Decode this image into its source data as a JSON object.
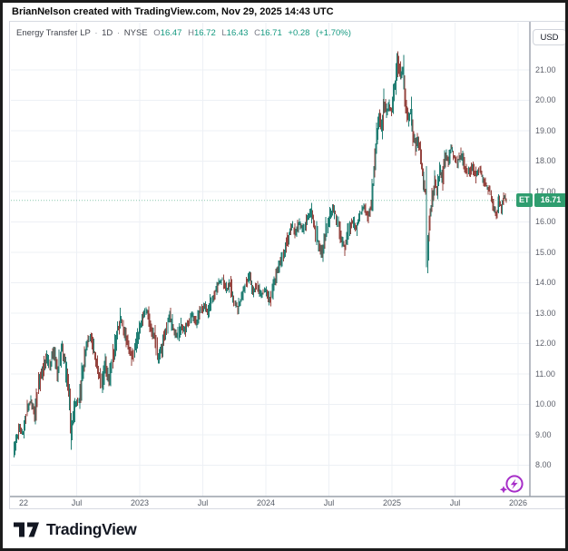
{
  "attribution": "BrianNelson created with TradingView.com, Nov 29, 2025 14:43 UTC",
  "header": {
    "symbol": "Energy Transfer LP",
    "separator": "·",
    "interval": "1D",
    "exchange": "NYSE",
    "ohlc": [
      {
        "k": "O",
        "v": "16.47"
      },
      {
        "k": "H",
        "v": "16.72"
      },
      {
        "k": "L",
        "v": "16.43"
      },
      {
        "k": "C",
        "v": "16.71"
      }
    ],
    "change": "+0.28",
    "change_pct": "(+1.70%)"
  },
  "price_axis": {
    "currency": "USD",
    "last_price_badge": {
      "symbol": "ET",
      "price": "16.71"
    }
  },
  "footer": {
    "brand": "TradingView"
  },
  "icons": {
    "ai_assistant": "lightning-circle-with-spark-icon"
  },
  "colors": {
    "up": "#15776b",
    "down": "#8f3a35",
    "badge_green": "#2f9d6f",
    "ohlc_green": "#149980",
    "grid": "#edf0f5",
    "axis_line": "#9aa0aa",
    "text": "#131722",
    "muted": "#5d606b",
    "ai_purple": "#a62dc8",
    "dotted_line": "#2f9d6f"
  },
  "chart_data": {
    "type": "candlestick",
    "title": "Energy Transfer LP",
    "interval": "1D",
    "exchange": "NYSE",
    "ylabel": "USD",
    "ylim": [
      7.6,
      22.2
    ],
    "grid": true,
    "last_price": 16.71,
    "ohlc_latest": {
      "open": 16.47,
      "high": 16.72,
      "low": 16.43,
      "close": 16.71,
      "change": 0.28,
      "change_pct": 1.7
    },
    "y_ticks": [
      "21.00",
      "20.00",
      "19.00",
      "18.00",
      "17.00",
      "16.00",
      "15.00",
      "14.00",
      "13.00",
      "12.00",
      "11.00",
      "10.00",
      "9.00",
      "8.00"
    ],
    "x_ticks": [
      {
        "label": "22",
        "t": 2022.0
      },
      {
        "label": "Jul",
        "t": 2022.5
      },
      {
        "label": "2023",
        "t": 2023.0
      },
      {
        "label": "Jul",
        "t": 2023.5
      },
      {
        "label": "2024",
        "t": 2024.0
      },
      {
        "label": "Jul",
        "t": 2024.5
      },
      {
        "label": "2025",
        "t": 2025.0
      },
      {
        "label": "Jul",
        "t": 2025.5
      },
      {
        "label": "2026",
        "t": 2026.0
      }
    ],
    "series_note": "sampled close prices [year-fraction, USD] read from chart",
    "series": [
      [
        2022.0,
        8.4
      ],
      [
        2022.03,
        8.9
      ],
      [
        2022.05,
        9.25
      ],
      [
        2022.08,
        9.05
      ],
      [
        2022.11,
        9.8
      ],
      [
        2022.14,
        10.15
      ],
      [
        2022.17,
        9.7
      ],
      [
        2022.2,
        10.6
      ],
      [
        2022.23,
        11.1
      ],
      [
        2022.26,
        11.6
      ],
      [
        2022.29,
        11.3
      ],
      [
        2022.32,
        11.7
      ],
      [
        2022.35,
        11.05
      ],
      [
        2022.38,
        11.85
      ],
      [
        2022.41,
        11.4
      ],
      [
        2022.44,
        10.4
      ],
      [
        2022.46,
        9.15
      ],
      [
        2022.49,
        9.95
      ],
      [
        2022.52,
        10.15
      ],
      [
        2022.55,
        11.1
      ],
      [
        2022.58,
        11.9
      ],
      [
        2022.61,
        12.25
      ],
      [
        2022.64,
        11.7
      ],
      [
        2022.67,
        11.15
      ],
      [
        2022.7,
        10.65
      ],
      [
        2022.73,
        11.3
      ],
      [
        2022.76,
        10.8
      ],
      [
        2022.79,
        11.6
      ],
      [
        2022.82,
        12.3
      ],
      [
        2022.85,
        12.85
      ],
      [
        2022.88,
        12.4
      ],
      [
        2022.91,
        11.9
      ],
      [
        2022.94,
        11.5
      ],
      [
        2022.97,
        11.95
      ],
      [
        2023.0,
        12.5
      ],
      [
        2023.03,
        12.95
      ],
      [
        2023.06,
        13.1
      ],
      [
        2023.09,
        12.55
      ],
      [
        2023.12,
        12.2
      ],
      [
        2023.15,
        11.45
      ],
      [
        2023.18,
        11.9
      ],
      [
        2023.21,
        12.5
      ],
      [
        2023.24,
        12.9
      ],
      [
        2023.27,
        12.45
      ],
      [
        2023.3,
        12.2
      ],
      [
        2023.33,
        12.6
      ],
      [
        2023.36,
        12.4
      ],
      [
        2023.39,
        12.75
      ],
      [
        2023.42,
        12.95
      ],
      [
        2023.45,
        12.7
      ],
      [
        2023.48,
        13.05
      ],
      [
        2023.51,
        13.25
      ],
      [
        2023.54,
        13.0
      ],
      [
        2023.57,
        13.45
      ],
      [
        2023.6,
        13.7
      ],
      [
        2023.63,
        14.0
      ],
      [
        2023.66,
        14.1
      ],
      [
        2023.69,
        13.75
      ],
      [
        2023.72,
        14.0
      ],
      [
        2023.75,
        13.4
      ],
      [
        2023.78,
        13.15
      ],
      [
        2023.81,
        13.55
      ],
      [
        2023.84,
        13.9
      ],
      [
        2023.87,
        14.2
      ],
      [
        2023.9,
        13.7
      ],
      [
        2023.93,
        13.9
      ],
      [
        2023.96,
        13.55
      ],
      [
        2024.0,
        13.8
      ],
      [
        2024.03,
        13.35
      ],
      [
        2024.06,
        13.95
      ],
      [
        2024.09,
        14.35
      ],
      [
        2024.12,
        14.7
      ],
      [
        2024.15,
        15.05
      ],
      [
        2024.18,
        15.5
      ],
      [
        2024.21,
        15.9
      ],
      [
        2024.24,
        15.6
      ],
      [
        2024.27,
        16.0
      ],
      [
        2024.3,
        15.7
      ],
      [
        2024.33,
        16.15
      ],
      [
        2024.36,
        16.35
      ],
      [
        2024.39,
        15.85
      ],
      [
        2024.42,
        15.25
      ],
      [
        2024.45,
        14.95
      ],
      [
        2024.48,
        15.75
      ],
      [
        2024.51,
        16.25
      ],
      [
        2024.54,
        16.45
      ],
      [
        2024.57,
        16.05
      ],
      [
        2024.6,
        15.4
      ],
      [
        2024.63,
        15.1
      ],
      [
        2024.66,
        15.75
      ],
      [
        2024.69,
        16.05
      ],
      [
        2024.72,
        15.8
      ],
      [
        2024.75,
        16.25
      ],
      [
        2024.78,
        16.5
      ],
      [
        2024.81,
        16.2
      ],
      [
        2024.84,
        16.55
      ],
      [
        2024.86,
        17.6
      ],
      [
        2024.88,
        18.8
      ],
      [
        2024.9,
        19.45
      ],
      [
        2024.92,
        19.05
      ],
      [
        2024.94,
        19.95
      ],
      [
        2024.96,
        19.55
      ],
      [
        2024.98,
        19.85
      ],
      [
        2025.0,
        19.6
      ],
      [
        2025.02,
        20.4
      ],
      [
        2025.05,
        21.35
      ],
      [
        2025.07,
        20.8
      ],
      [
        2025.09,
        21.05
      ],
      [
        2025.11,
        20.0
      ],
      [
        2025.13,
        19.35
      ],
      [
        2025.15,
        19.7
      ],
      [
        2025.17,
        18.9
      ],
      [
        2025.19,
        18.45
      ],
      [
        2025.21,
        18.8
      ],
      [
        2025.23,
        18.15
      ],
      [
        2025.25,
        17.45
      ],
      [
        2025.27,
        16.9
      ],
      [
        2025.28,
        14.7
      ],
      [
        2025.3,
        16.1
      ],
      [
        2025.32,
        16.75
      ],
      [
        2025.34,
        17.35
      ],
      [
        2025.36,
        17.05
      ],
      [
        2025.38,
        17.7
      ],
      [
        2025.4,
        17.45
      ],
      [
        2025.43,
        18.2
      ],
      [
        2025.45,
        17.95
      ],
      [
        2025.47,
        18.5
      ],
      [
        2025.49,
        18.2
      ],
      [
        2025.52,
        17.95
      ],
      [
        2025.55,
        18.25
      ],
      [
        2025.58,
        17.8
      ],
      [
        2025.61,
        17.6
      ],
      [
        2025.64,
        17.85
      ],
      [
        2025.67,
        17.5
      ],
      [
        2025.7,
        17.7
      ],
      [
        2025.73,
        17.35
      ],
      [
        2025.76,
        17.15
      ],
      [
        2025.79,
        16.85
      ],
      [
        2025.81,
        16.5
      ],
      [
        2025.83,
        16.25
      ],
      [
        2025.85,
        16.7
      ],
      [
        2025.87,
        16.45
      ],
      [
        2025.89,
        16.85
      ],
      [
        2025.91,
        16.71
      ]
    ]
  }
}
